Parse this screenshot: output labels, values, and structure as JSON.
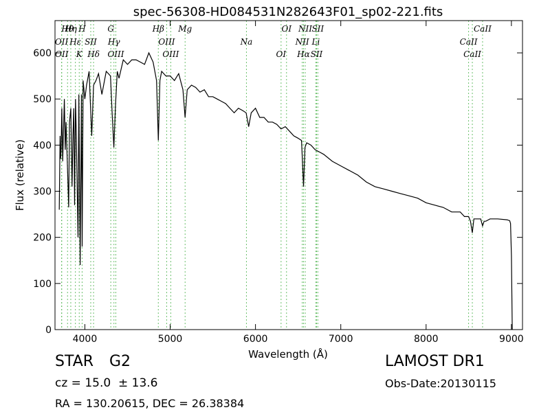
{
  "chart_data": {
    "type": "line",
    "title": "spec-56308-HD084531N282643F01_sp02-221.fits",
    "xlabel": "Wavelength (Å)",
    "ylabel": "Flux (relative)",
    "xlim": [
      3650,
      9130
    ],
    "ylim": [
      0,
      670
    ],
    "xticks": [
      4000,
      5000,
      6000,
      7000,
      8000,
      9000
    ],
    "yticks": [
      0,
      100,
      200,
      300,
      400,
      500,
      600
    ],
    "grid": false,
    "series": [
      {
        "color": "#000000",
        "x": [
          3700,
          3710,
          3715,
          3722,
          3730,
          3740,
          3760,
          3770,
          3780,
          3800,
          3810,
          3820,
          3835,
          3850,
          3860,
          3870,
          3880,
          3890,
          3900,
          3920,
          3930,
          3945,
          3960,
          3968,
          3980,
          4000,
          4020,
          4050,
          4080,
          4102,
          4130,
          4160,
          4200,
          4250,
          4300,
          4320,
          4340,
          4360,
          4380,
          4400,
          4450,
          4500,
          4550,
          4600,
          4650,
          4700,
          4750,
          4800,
          4840,
          4861,
          4880,
          4900,
          4950,
          5000,
          5050,
          5100,
          5150,
          5175,
          5200,
          5250,
          5300,
          5350,
          5400,
          5450,
          5500,
          5550,
          5600,
          5650,
          5700,
          5750,
          5800,
          5850,
          5890,
          5920,
          5950,
          6000,
          6050,
          6100,
          6150,
          6200,
          6250,
          6300,
          6350,
          6400,
          6450,
          6500,
          6540,
          6563,
          6580,
          6600,
          6650,
          6700,
          6750,
          6800,
          6900,
          7000,
          7100,
          7200,
          7300,
          7400,
          7500,
          7600,
          7700,
          7800,
          7900,
          8000,
          8100,
          8200,
          8300,
          8400,
          8450,
          8498,
          8520,
          8542,
          8560,
          8600,
          8640,
          8662,
          8680,
          8700,
          8750,
          8800,
          8840,
          8950,
          8980,
          8990,
          9000,
          9010
        ],
        "y": [
          260,
          420,
          370,
          390,
          480,
          365,
          500,
          390,
          450,
          330,
          265,
          450,
          480,
          310,
          420,
          480,
          270,
          500,
          420,
          200,
          510,
          140,
          510,
          180,
          540,
          500,
          530,
          560,
          420,
          530,
          540,
          555,
          510,
          560,
          550,
          470,
          395,
          490,
          560,
          545,
          585,
          575,
          585,
          585,
          580,
          575,
          600,
          580,
          540,
          410,
          540,
          560,
          550,
          550,
          540,
          555,
          520,
          460,
          520,
          530,
          525,
          515,
          520,
          505,
          505,
          500,
          495,
          490,
          480,
          470,
          480,
          475,
          470,
          440,
          470,
          480,
          460,
          460,
          450,
          450,
          445,
          435,
          440,
          430,
          420,
          415,
          410,
          310,
          395,
          405,
          400,
          390,
          385,
          380,
          365,
          355,
          345,
          335,
          320,
          310,
          305,
          300,
          295,
          290,
          285,
          275,
          270,
          265,
          255,
          255,
          245,
          245,
          235,
          210,
          240,
          240,
          240,
          225,
          235,
          235,
          240,
          240,
          240,
          238,
          236,
          230,
          160,
          0
        ]
      }
    ],
    "line_annotations": [
      {
        "label": "Hθ",
        "x": 3797
      },
      {
        "label": "OII",
        "x": 3727
      },
      {
        "label": "OII",
        "x": 3729
      },
      {
        "label": "Hη",
        "x": 3835
      },
      {
        "label": "Hε",
        "x": 3889
      },
      {
        "label": "K",
        "x": 3934
      },
      {
        "label": "H",
        "x": 3968
      },
      {
        "label": "SII",
        "x": 4069
      },
      {
        "label": "Hδ",
        "x": 4102
      },
      {
        "label": "G",
        "x": 4304
      },
      {
        "label": "Hγ",
        "x": 4341
      },
      {
        "label": "OIII",
        "x": 4363
      },
      {
        "label": "Hβ",
        "x": 4861
      },
      {
        "label": "OIII",
        "x": 4959
      },
      {
        "label": "OIII",
        "x": 5007
      },
      {
        "label": "Mg",
        "x": 5175
      },
      {
        "label": "Na",
        "x": 5894
      },
      {
        "label": "OI",
        "x": 6300
      },
      {
        "label": "OI",
        "x": 6364
      },
      {
        "label": "NII",
        "x": 6548
      },
      {
        "label": "Hα",
        "x": 6563
      },
      {
        "label": "NII",
        "x": 6583
      },
      {
        "label": "Li",
        "x": 6708
      },
      {
        "label": "SII",
        "x": 6716
      },
      {
        "label": "SII",
        "x": 6731
      },
      {
        "label": "CaII",
        "x": 8498
      },
      {
        "label": "CaII",
        "x": 8542
      },
      {
        "label": "CaII",
        "x": 8662
      }
    ]
  },
  "info": {
    "object_class": "STAR",
    "subclass": "G2",
    "redshift_text": "cz = 15.0  ± 13.6",
    "coords_text": "RA = 130.20615, DEC = 26.38384",
    "survey": "LAMOST DR1",
    "obs_date": "Obs-Date:20130115"
  }
}
